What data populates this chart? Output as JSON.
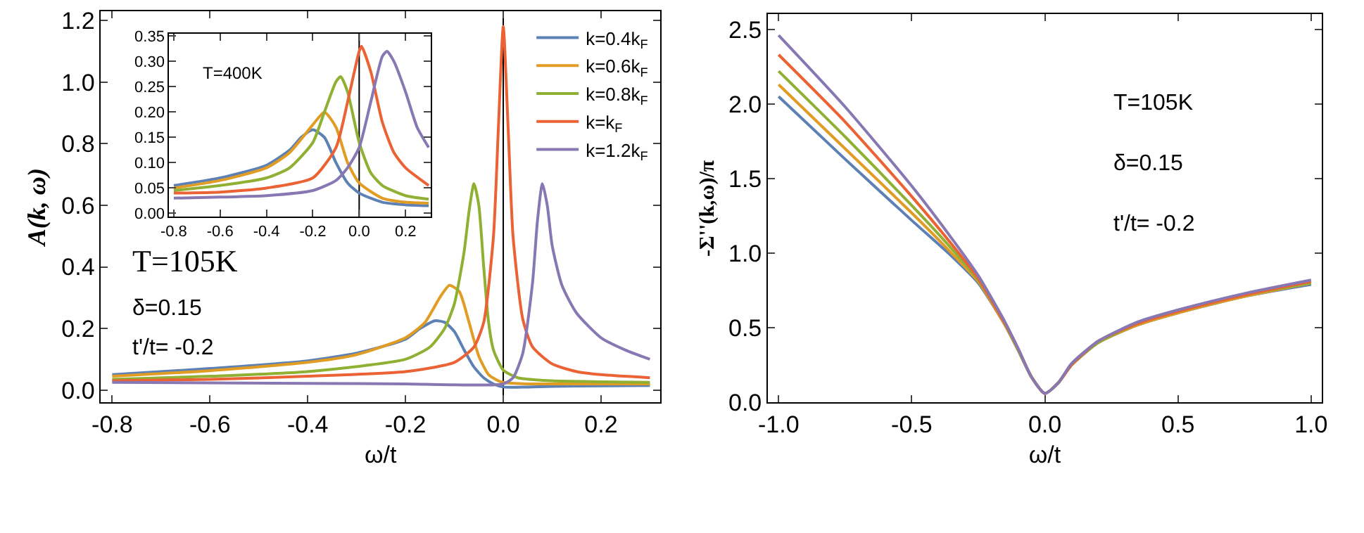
{
  "chart_data": [
    {
      "type": "line",
      "xlabel": "ω/t",
      "ylabel": "A(k, ω)",
      "legend": "top right",
      "xlim": [
        -0.823,
        0.321
      ],
      "ylim": [
        -0.04,
        1.23
      ],
      "xticks": [
        -0.8,
        -0.6,
        -0.4,
        -0.2,
        {
          "value": 0,
          "label": "0.0"
        },
        0.2
      ],
      "yticks": [
        {
          "value": 0,
          "label": "0.0"
        },
        0.2,
        0.4,
        0.6,
        0.8,
        {
          "value": 1,
          "label": "1.0"
        },
        1.2
      ],
      "ref_lines": [
        {
          "axis": "x",
          "value": 0,
          "color": "#000000"
        }
      ],
      "annotations": [
        "T=105K",
        "δ=0.15",
        "t'/t= -0.2"
      ],
      "series": [
        {
          "name": "k=0.4k$_{F}$",
          "color": "#5e81b5",
          "x": [
            -0.8,
            -0.6,
            -0.4,
            -0.3,
            -0.2,
            -0.17,
            -0.14,
            -0.12,
            -0.1,
            -0.08,
            -0.06,
            -0.04,
            -0.02,
            0,
            0.05,
            0.1,
            0.2,
            0.3
          ],
          "values": [
            0.05,
            0.07,
            0.095,
            0.12,
            0.165,
            0.2,
            0.225,
            0.22,
            0.19,
            0.13,
            0.075,
            0.04,
            0.02,
            0.01,
            0.01,
            0.012,
            0.014,
            0.015
          ]
        },
        {
          "name": "k=0.6k$_{F}$",
          "color": "#e19c24",
          "x": [
            -0.8,
            -0.6,
            -0.4,
            -0.3,
            -0.2,
            -0.16,
            -0.13,
            -0.11,
            -0.09,
            -0.07,
            -0.05,
            -0.03,
            -0.01,
            0,
            0.05,
            0.1,
            0.2,
            0.3
          ],
          "values": [
            0.045,
            0.063,
            0.09,
            0.115,
            0.17,
            0.22,
            0.3,
            0.34,
            0.32,
            0.22,
            0.11,
            0.05,
            0.03,
            0.025,
            0.02,
            0.02,
            0.02,
            0.02
          ]
        },
        {
          "name": "k=0.8k$_{F}$",
          "color": "#8fb032",
          "x": [
            -0.8,
            -0.6,
            -0.4,
            -0.2,
            -0.15,
            -0.12,
            -0.1,
            -0.08,
            -0.07,
            -0.06,
            -0.05,
            -0.04,
            -0.03,
            -0.02,
            0,
            0.03,
            0.1,
            0.2,
            0.3
          ],
          "values": [
            0.035,
            0.045,
            0.06,
            0.1,
            0.14,
            0.2,
            0.28,
            0.45,
            0.58,
            0.67,
            0.6,
            0.4,
            0.22,
            0.13,
            0.065,
            0.04,
            0.03,
            0.027,
            0.025
          ]
        },
        {
          "name": "k=k$_{F}$",
          "color": "#eb6235",
          "x": [
            -0.8,
            -0.6,
            -0.4,
            -0.2,
            -0.1,
            -0.06,
            -0.04,
            -0.02,
            -0.01,
            0,
            0.01,
            0.02,
            0.04,
            0.06,
            0.1,
            0.15,
            0.2,
            0.3
          ],
          "values": [
            0.03,
            0.035,
            0.045,
            0.06,
            0.09,
            0.14,
            0.22,
            0.5,
            0.85,
            1.18,
            0.85,
            0.5,
            0.23,
            0.14,
            0.085,
            0.06,
            0.05,
            0.04
          ]
        },
        {
          "name": "k=1.2k$_{F}$",
          "color": "#8778b3",
          "x": [
            -0.8,
            -0.4,
            -0.2,
            -0.1,
            0,
            0.02,
            0.04,
            0.06,
            0.07,
            0.08,
            0.09,
            0.1,
            0.12,
            0.15,
            0.2,
            0.25,
            0.3
          ],
          "values": [
            0.025,
            0.022,
            0.02,
            0.017,
            0.02,
            0.04,
            0.12,
            0.35,
            0.55,
            0.67,
            0.6,
            0.47,
            0.34,
            0.25,
            0.17,
            0.13,
            0.1
          ]
        }
      ]
    },
    {
      "type": "line",
      "xlim": [
        -0.82,
        0.31
      ],
      "ylim": [
        -0.006,
        0.355
      ],
      "xticks": [
        -0.8,
        -0.6,
        -0.4,
        -0.2,
        {
          "value": 0,
          "label": "0.0"
        },
        0.2
      ],
      "yticks": [
        {
          "value": 0,
          "label": "0.00"
        },
        0.05,
        {
          "value": 0.1,
          "label": "0.10"
        },
        0.15,
        {
          "value": 0.2,
          "label": "0.20"
        },
        0.25,
        {
          "value": 0.3,
          "label": "0.30"
        },
        0.35
      ],
      "ref_lines": [
        {
          "axis": "x",
          "value": 0,
          "color": "#000000"
        }
      ],
      "annotations": [
        "T=400K"
      ],
      "series": [
        {
          "color": "#5e81b5",
          "x": [
            -0.8,
            -0.6,
            -0.4,
            -0.3,
            -0.25,
            -0.2,
            -0.15,
            -0.1,
            -0.05,
            0,
            0.1,
            0.2,
            0.3
          ],
          "values": [
            0.055,
            0.07,
            0.095,
            0.125,
            0.15,
            0.165,
            0.15,
            0.1,
            0.06,
            0.04,
            0.022,
            0.017,
            0.015
          ]
        },
        {
          "color": "#e19c24",
          "x": [
            -0.8,
            -0.6,
            -0.4,
            -0.3,
            -0.2,
            -0.15,
            -0.1,
            -0.05,
            0,
            0.1,
            0.2,
            0.3
          ],
          "values": [
            0.05,
            0.065,
            0.09,
            0.12,
            0.175,
            0.2,
            0.17,
            0.1,
            0.06,
            0.03,
            0.022,
            0.02
          ]
        },
        {
          "color": "#8fb032",
          "x": [
            -0.8,
            -0.6,
            -0.4,
            -0.3,
            -0.2,
            -0.15,
            -0.1,
            -0.08,
            -0.05,
            0,
            0.05,
            0.1,
            0.2,
            0.3
          ],
          "values": [
            0.045,
            0.055,
            0.07,
            0.09,
            0.14,
            0.2,
            0.26,
            0.27,
            0.24,
            0.14,
            0.08,
            0.055,
            0.035,
            0.028
          ]
        },
        {
          "color": "#eb6235",
          "x": [
            -0.8,
            -0.6,
            -0.4,
            -0.2,
            -0.1,
            -0.05,
            0,
            0.01,
            0.05,
            0.1,
            0.15,
            0.2,
            0.3
          ],
          "values": [
            0.04,
            0.042,
            0.05,
            0.07,
            0.13,
            0.22,
            0.32,
            0.33,
            0.28,
            0.18,
            0.12,
            0.09,
            0.055
          ]
        },
        {
          "color": "#8778b3",
          "x": [
            -0.8,
            -0.6,
            -0.4,
            -0.2,
            -0.1,
            -0.05,
            0,
            0.05,
            0.1,
            0.12,
            0.15,
            0.2,
            0.25,
            0.3
          ],
          "values": [
            0.03,
            0.032,
            0.035,
            0.045,
            0.065,
            0.09,
            0.13,
            0.22,
            0.31,
            0.32,
            0.3,
            0.24,
            0.17,
            0.13
          ]
        }
      ]
    },
    {
      "type": "line",
      "xlabel": "ω/t",
      "ylabel": "-Σ''(k,ω)/π",
      "xlim": [
        -1.04,
        1.04
      ],
      "ylim": [
        0,
        2.6
      ],
      "xticks": [
        {
          "value": -1,
          "label": "-1.0"
        },
        -0.5,
        {
          "value": 0,
          "label": "0.0"
        },
        0.5,
        {
          "value": 1,
          "label": "1.0"
        }
      ],
      "yticks": [
        {
          "value": 0,
          "label": "0.0"
        },
        0.5,
        {
          "value": 1,
          "label": "1.0"
        },
        1.5,
        {
          "value": 2,
          "label": "2.0"
        },
        2.5
      ],
      "annotations": [
        "T=105K",
        "δ=0.15",
        "t'/t= -0.2"
      ],
      "x": [
        -1,
        -0.75,
        -0.5,
        -0.35,
        -0.25,
        -0.15,
        -0.1,
        -0.05,
        0,
        0.05,
        0.1,
        0.2,
        0.35,
        0.5,
        0.75,
        1
      ],
      "series": [
        {
          "color": "#5e81b5",
          "values": [
            2.05,
            1.63,
            1.22,
            0.98,
            0.8,
            0.52,
            0.35,
            0.17,
            0.06,
            0.13,
            0.25,
            0.4,
            0.52,
            0.6,
            0.71,
            0.79
          ]
        },
        {
          "color": "#e19c24",
          "values": [
            2.13,
            1.7,
            1.27,
            1.0,
            0.81,
            0.52,
            0.35,
            0.17,
            0.06,
            0.13,
            0.25,
            0.4,
            0.52,
            0.6,
            0.71,
            0.8
          ]
        },
        {
          "color": "#8fb032",
          "values": [
            2.22,
            1.78,
            1.32,
            1.03,
            0.82,
            0.53,
            0.35,
            0.17,
            0.06,
            0.13,
            0.25,
            0.4,
            0.53,
            0.61,
            0.72,
            0.8
          ]
        },
        {
          "color": "#eb6235",
          "values": [
            2.33,
            1.88,
            1.38,
            1.06,
            0.83,
            0.53,
            0.36,
            0.17,
            0.06,
            0.13,
            0.25,
            0.41,
            0.53,
            0.61,
            0.72,
            0.81
          ]
        },
        {
          "color": "#8778b3",
          "values": [
            2.46,
            1.98,
            1.45,
            1.1,
            0.85,
            0.54,
            0.36,
            0.17,
            0.06,
            0.13,
            0.26,
            0.41,
            0.54,
            0.62,
            0.73,
            0.82
          ]
        }
      ]
    }
  ]
}
